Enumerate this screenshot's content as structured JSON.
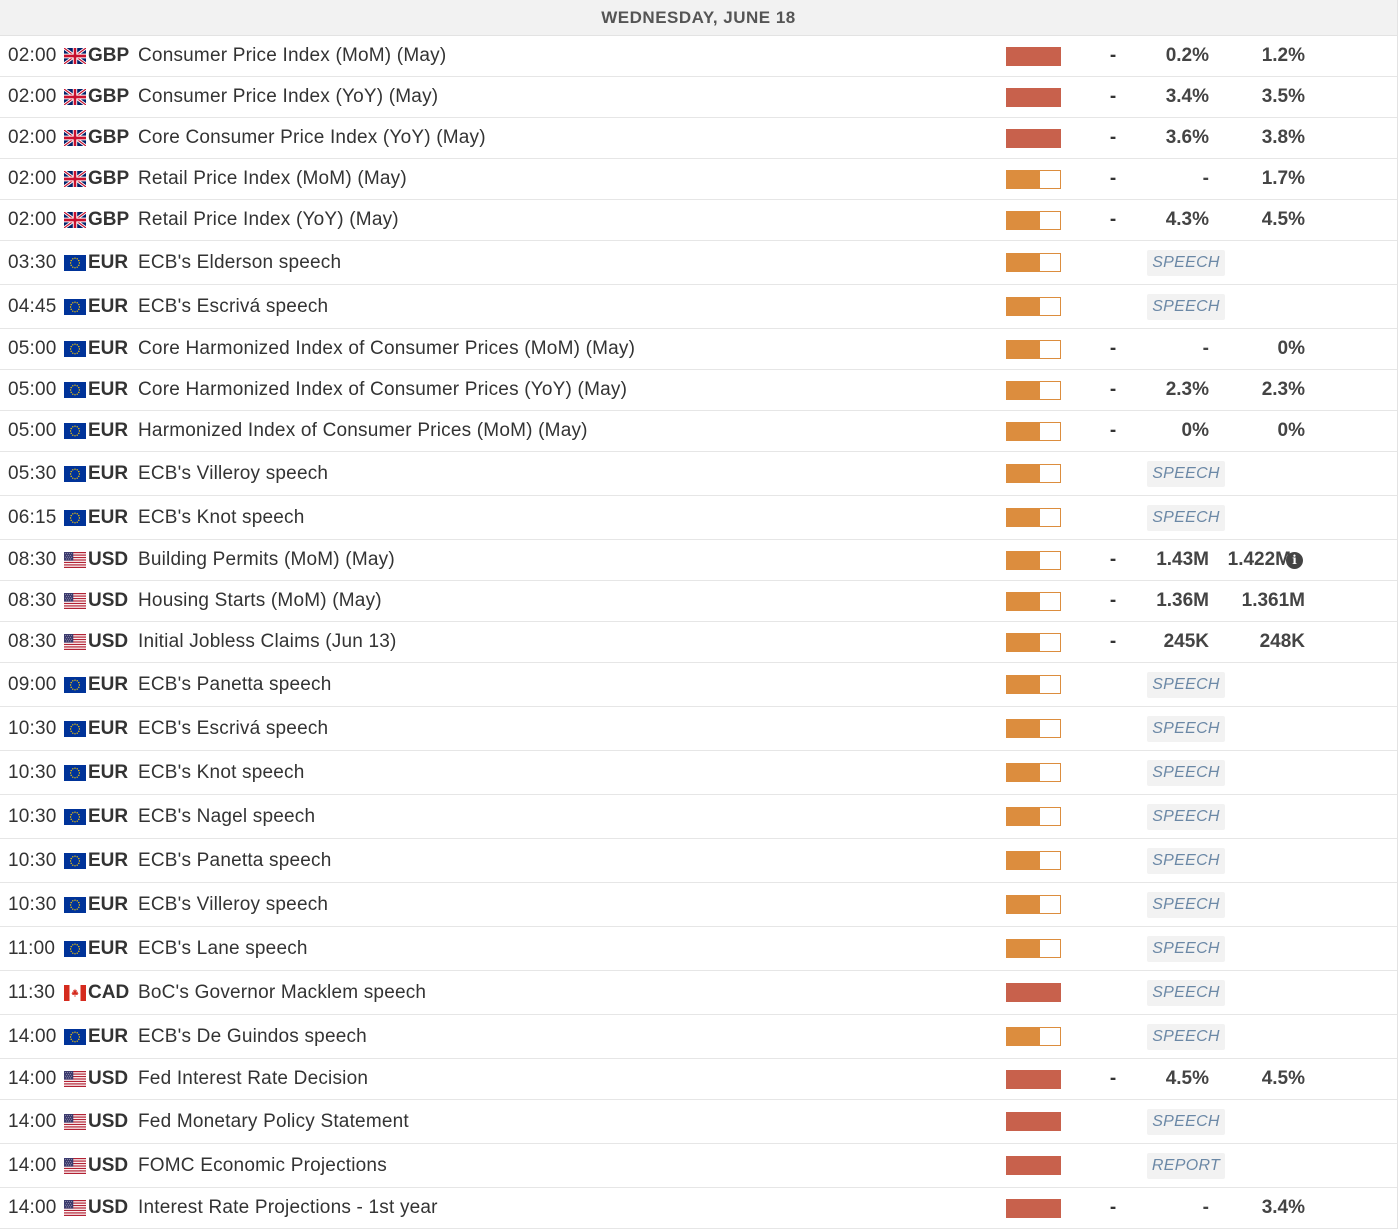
{
  "calendar": {
    "day_header": "WEDNESDAY, JUNE 18",
    "colors": {
      "volatility_high": "#c8614c",
      "volatility_medium": "#dc8d3e",
      "tag_text": "#6b88a6",
      "header_bg": "#f2f2f2"
    },
    "events": [
      {
        "time": "02:00",
        "flag": "uk-flag-icon",
        "currency": "GBP",
        "event": "Consumer Price Index (MoM) (May)",
        "volatility": "high",
        "actual": "-",
        "consensus": "0.2%",
        "previous": "1.2%"
      },
      {
        "time": "02:00",
        "flag": "uk-flag-icon",
        "currency": "GBP",
        "event": "Consumer Price Index (YoY) (May)",
        "volatility": "high",
        "actual": "-",
        "consensus": "3.4%",
        "previous": "3.5%"
      },
      {
        "time": "02:00",
        "flag": "uk-flag-icon",
        "currency": "GBP",
        "event": "Core Consumer Price Index (YoY) (May)",
        "volatility": "high",
        "actual": "-",
        "consensus": "3.6%",
        "previous": "3.8%"
      },
      {
        "time": "02:00",
        "flag": "uk-flag-icon",
        "currency": "GBP",
        "event": "Retail Price Index (MoM) (May)",
        "volatility": "medium",
        "actual": "-",
        "consensus": "-",
        "previous": "1.7%"
      },
      {
        "time": "02:00",
        "flag": "uk-flag-icon",
        "currency": "GBP",
        "event": "Retail Price Index (YoY) (May)",
        "volatility": "medium",
        "actual": "-",
        "consensus": "4.3%",
        "previous": "4.5%"
      },
      {
        "time": "03:30",
        "flag": "eu-flag-icon",
        "currency": "EUR",
        "event": "ECB's Elderson speech",
        "volatility": "medium",
        "tag": "SPEECH"
      },
      {
        "time": "04:45",
        "flag": "eu-flag-icon",
        "currency": "EUR",
        "event": "ECB's Escrivá speech",
        "volatility": "medium",
        "tag": "SPEECH"
      },
      {
        "time": "05:00",
        "flag": "eu-flag-icon",
        "currency": "EUR",
        "event": "Core Harmonized Index of Consumer Prices (MoM) (May)",
        "volatility": "medium",
        "actual": "-",
        "consensus": "-",
        "previous": "0%"
      },
      {
        "time": "05:00",
        "flag": "eu-flag-icon",
        "currency": "EUR",
        "event": "Core Harmonized Index of Consumer Prices (YoY) (May)",
        "volatility": "medium",
        "actual": "-",
        "consensus": "2.3%",
        "previous": "2.3%"
      },
      {
        "time": "05:00",
        "flag": "eu-flag-icon",
        "currency": "EUR",
        "event": "Harmonized Index of Consumer Prices (MoM) (May)",
        "volatility": "medium",
        "actual": "-",
        "consensus": "0%",
        "previous": "0%"
      },
      {
        "time": "05:30",
        "flag": "eu-flag-icon",
        "currency": "EUR",
        "event": "ECB's Villeroy speech",
        "volatility": "medium",
        "tag": "SPEECH"
      },
      {
        "time": "06:15",
        "flag": "eu-flag-icon",
        "currency": "EUR",
        "event": "ECB's Knot speech",
        "volatility": "medium",
        "tag": "SPEECH"
      },
      {
        "time": "08:30",
        "flag": "us-flag-icon",
        "currency": "USD",
        "event": "Building Permits (MoM) (May)",
        "volatility": "medium",
        "actual": "-",
        "consensus": "1.43M",
        "previous": "1.422M",
        "info": true
      },
      {
        "time": "08:30",
        "flag": "us-flag-icon",
        "currency": "USD",
        "event": "Housing Starts (MoM) (May)",
        "volatility": "medium",
        "actual": "-",
        "consensus": "1.36M",
        "previous": "1.361M"
      },
      {
        "time": "08:30",
        "flag": "us-flag-icon",
        "currency": "USD",
        "event": "Initial Jobless Claims (Jun 13)",
        "volatility": "medium",
        "actual": "-",
        "consensus": "245K",
        "previous": "248K"
      },
      {
        "time": "09:00",
        "flag": "eu-flag-icon",
        "currency": "EUR",
        "event": "ECB's Panetta speech",
        "volatility": "medium",
        "tag": "SPEECH"
      },
      {
        "time": "10:30",
        "flag": "eu-flag-icon",
        "currency": "EUR",
        "event": "ECB's Escrivá speech",
        "volatility": "medium",
        "tag": "SPEECH"
      },
      {
        "time": "10:30",
        "flag": "eu-flag-icon",
        "currency": "EUR",
        "event": "ECB's Knot speech",
        "volatility": "medium",
        "tag": "SPEECH"
      },
      {
        "time": "10:30",
        "flag": "eu-flag-icon",
        "currency": "EUR",
        "event": "ECB's Nagel speech",
        "volatility": "medium",
        "tag": "SPEECH"
      },
      {
        "time": "10:30",
        "flag": "eu-flag-icon",
        "currency": "EUR",
        "event": "ECB's Panetta speech",
        "volatility": "medium",
        "tag": "SPEECH"
      },
      {
        "time": "10:30",
        "flag": "eu-flag-icon",
        "currency": "EUR",
        "event": "ECB's Villeroy speech",
        "volatility": "medium",
        "tag": "SPEECH"
      },
      {
        "time": "11:00",
        "flag": "eu-flag-icon",
        "currency": "EUR",
        "event": "ECB's Lane speech",
        "volatility": "medium",
        "tag": "SPEECH"
      },
      {
        "time": "11:30",
        "flag": "ca-flag-icon",
        "currency": "CAD",
        "event": "BoC's Governor Macklem speech",
        "volatility": "high",
        "tag": "SPEECH"
      },
      {
        "time": "14:00",
        "flag": "eu-flag-icon",
        "currency": "EUR",
        "event": "ECB's De Guindos speech",
        "volatility": "medium",
        "tag": "SPEECH"
      },
      {
        "time": "14:00",
        "flag": "us-flag-icon",
        "currency": "USD",
        "event": "Fed Interest Rate Decision",
        "volatility": "high",
        "actual": "-",
        "consensus": "4.5%",
        "previous": "4.5%"
      },
      {
        "time": "14:00",
        "flag": "us-flag-icon",
        "currency": "USD",
        "event": "Fed Monetary Policy Statement",
        "volatility": "high",
        "tag": "SPEECH"
      },
      {
        "time": "14:00",
        "flag": "us-flag-icon",
        "currency": "USD",
        "event": "FOMC Economic Projections",
        "volatility": "high",
        "tag": "REPORT"
      },
      {
        "time": "14:00",
        "flag": "us-flag-icon",
        "currency": "USD",
        "event": "Interest Rate Projections - 1st year",
        "volatility": "high",
        "actual": "-",
        "consensus": "-",
        "previous": "3.4%"
      }
    ]
  }
}
